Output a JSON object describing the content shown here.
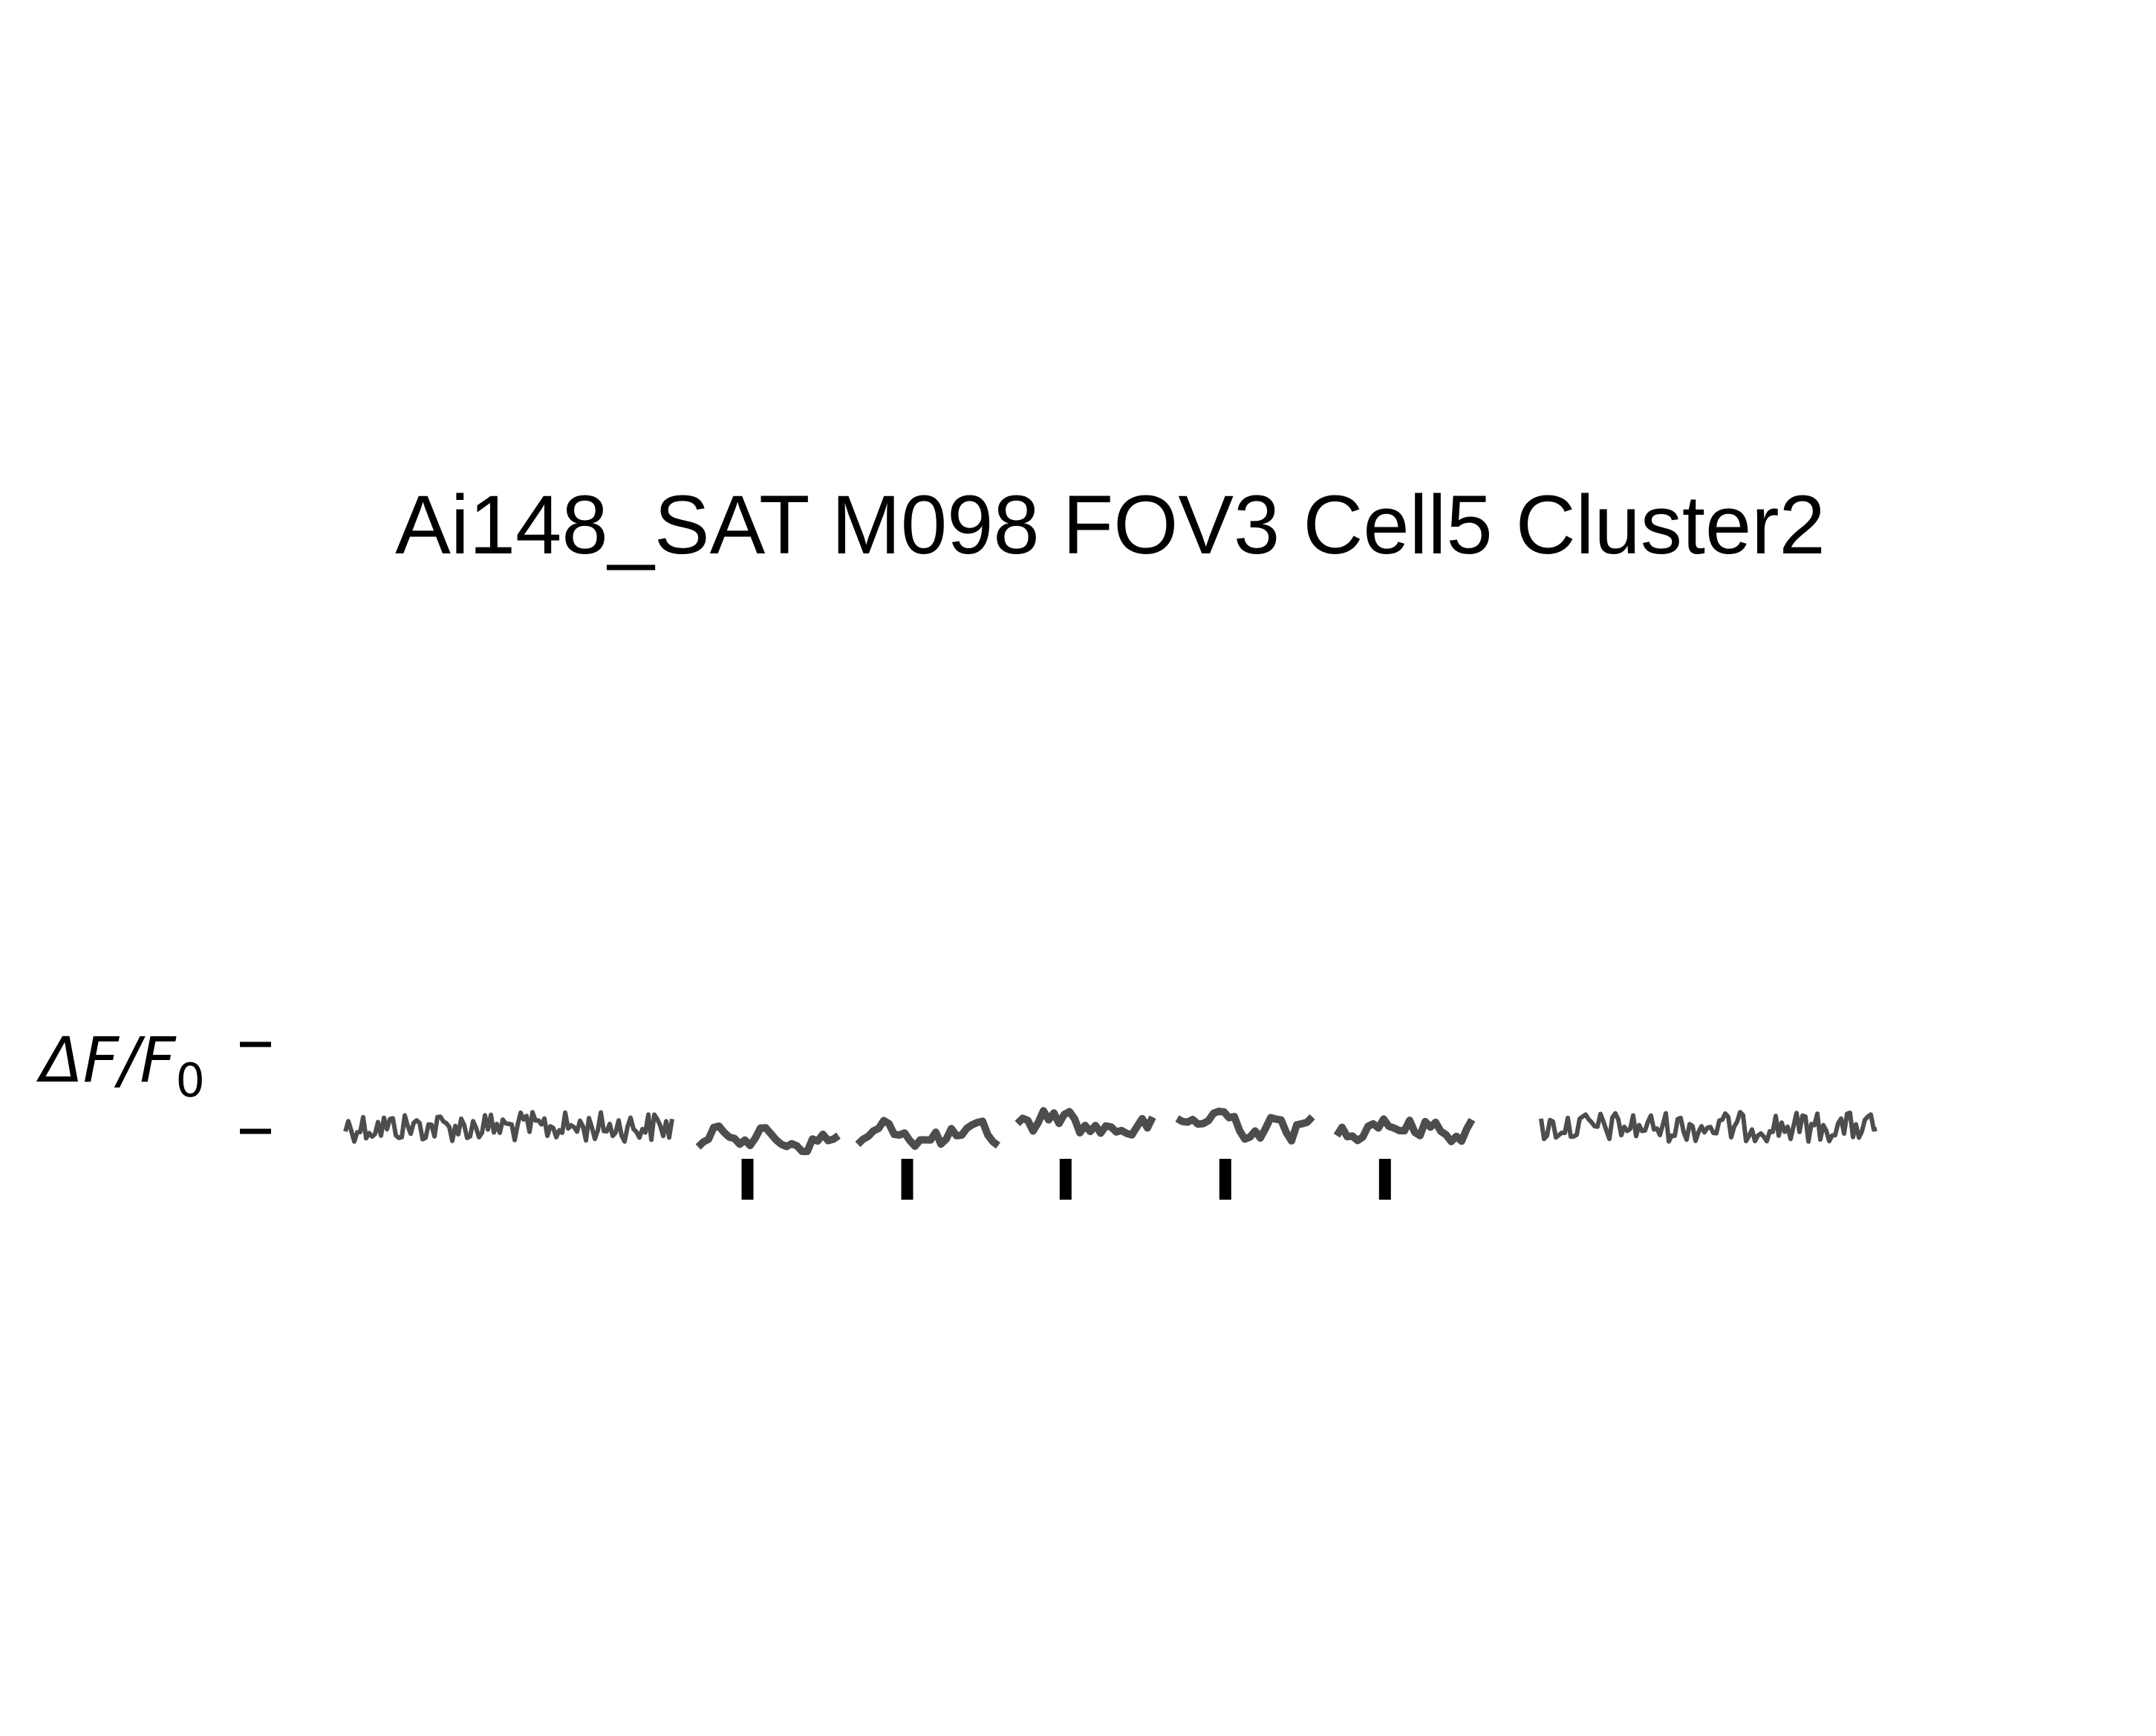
{
  "chart_data": {
    "type": "line",
    "title": "Ai148_SAT M098 FOV3 Cell5 Cluster2",
    "scale_bar": {
      "label": "ΔF/F",
      "label_subscript": "0",
      "value_text": ""
    },
    "trace_color": "#4d4d4d",
    "marker_color": "#000000",
    "segments": [
      {
        "name": "",
        "kind": "baseline-pre",
        "noise": "high"
      },
      {
        "name": "",
        "kind": "stimulus",
        "marker": true
      },
      {
        "name": "",
        "kind": "stimulus",
        "marker": true
      },
      {
        "name": "",
        "kind": "stimulus",
        "marker": true
      },
      {
        "name": "",
        "kind": "stimulus",
        "marker": true
      },
      {
        "name": "",
        "kind": "stimulus",
        "marker": true
      },
      {
        "name": "",
        "kind": "baseline-post",
        "noise": "high"
      }
    ]
  }
}
